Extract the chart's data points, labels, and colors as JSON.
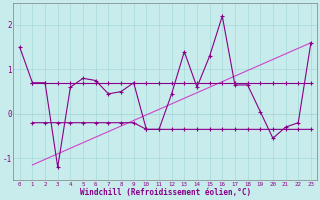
{
  "bg_color": "#c8ecec",
  "line_color_dark": "#880088",
  "line_color_light": "#cc44cc",
  "xlabel": "Windchill (Refroidissement éolien,°C)",
  "xlim": [
    -0.5,
    23.5
  ],
  "ylim": [
    -1.5,
    2.5
  ],
  "yticks": [
    -1,
    0,
    1,
    2
  ],
  "xticks": [
    0,
    1,
    2,
    3,
    4,
    5,
    6,
    7,
    8,
    9,
    10,
    11,
    12,
    13,
    14,
    15,
    16,
    17,
    18,
    19,
    20,
    21,
    22,
    23
  ],
  "series1_x": [
    0,
    1,
    2,
    3,
    4,
    5,
    6,
    7,
    8,
    9,
    10,
    11,
    12,
    13,
    14,
    15,
    16,
    17,
    18,
    19,
    20,
    21,
    22,
    23
  ],
  "series1_y": [
    1.5,
    0.7,
    0.7,
    -1.2,
    0.6,
    0.8,
    0.75,
    0.45,
    0.5,
    0.7,
    -0.35,
    -0.35,
    0.45,
    1.4,
    0.6,
    1.3,
    2.2,
    0.65,
    0.65,
    0.05,
    -0.55,
    -0.3,
    -0.2,
    1.6
  ],
  "series2_x": [
    1,
    2,
    3,
    4,
    5,
    6,
    7,
    8,
    9,
    10,
    11,
    12,
    13,
    14,
    15,
    16,
    17,
    18,
    19,
    20,
    21,
    22,
    23
  ],
  "series2_y": [
    0.7,
    0.7,
    0.7,
    0.7,
    0.7,
    0.7,
    0.7,
    0.7,
    0.7,
    0.7,
    0.7,
    0.7,
    0.7,
    0.7,
    0.7,
    0.7,
    0.7,
    0.7,
    0.7,
    0.7,
    0.7,
    0.7,
    0.7
  ],
  "series3_x": [
    1,
    2,
    3,
    4,
    5,
    6,
    7,
    8,
    9,
    10,
    11,
    12,
    13,
    14,
    15,
    16,
    17,
    18,
    19,
    20,
    21,
    22,
    23
  ],
  "series3_y": [
    -0.2,
    -0.2,
    -0.2,
    -0.2,
    -0.2,
    -0.2,
    -0.2,
    -0.2,
    -0.2,
    -0.35,
    -0.35,
    -0.35,
    -0.35,
    -0.35,
    -0.35,
    -0.35,
    -0.35,
    -0.35,
    -0.35,
    -0.35,
    -0.35,
    -0.35,
    -0.35
  ],
  "trend_x": [
    1,
    23
  ],
  "trend_y": [
    -1.15,
    1.6
  ],
  "grid_color": "#a8d8d8",
  "spine_color": "#808080"
}
